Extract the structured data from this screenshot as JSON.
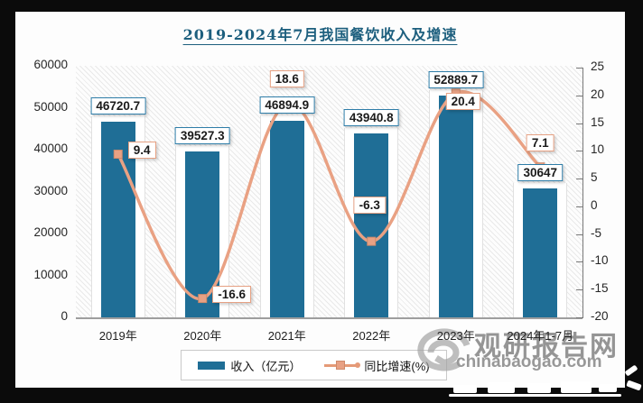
{
  "chart_data": {
    "type": "combo-bar-line",
    "title": "2019-2024年7月我国餐饮收入及增速",
    "categories": [
      "2019年",
      "2020年",
      "2021年",
      "2022年",
      "2023年",
      "2024年1-7月"
    ],
    "series": [
      {
        "name": "收入（亿元）",
        "type": "bar",
        "axis": "left",
        "values": [
          46720.7,
          39527.3,
          46894.9,
          43940.8,
          52889.7,
          30647
        ],
        "labels": [
          "46720.7",
          "39527.3",
          "46894.9",
          "43940.8",
          "52889.7",
          "30647"
        ]
      },
      {
        "name": "同比增速(%)",
        "type": "line",
        "axis": "right",
        "values": [
          9.4,
          -16.6,
          18.6,
          -6.3,
          20.4,
          7.1
        ],
        "labels": [
          "9.4",
          "-16.6",
          "18.6",
          "-6.3",
          "20.4",
          "7.1"
        ],
        "label_placement": [
          "right",
          "right",
          "above",
          "above-far",
          "below",
          "above"
        ]
      }
    ],
    "left_axis": {
      "min": 0,
      "max": 60000,
      "step": 10000,
      "ticks": [
        "60000",
        "50000",
        "40000",
        "30000",
        "20000",
        "10000",
        "0"
      ]
    },
    "right_axis": {
      "min": -20,
      "max": 25,
      "step": 5,
      "ticks": [
        "25",
        "20",
        "15",
        "10",
        "5",
        "0",
        "-5",
        "-10",
        "-15",
        "-20"
      ]
    },
    "legend_position": "bottom",
    "grid": "none",
    "plot_background": "diagonal-hatch"
  },
  "colors": {
    "bar": "#1f6e96",
    "line": "#e9a183",
    "marker": "#e8a184",
    "bar_label_border": "#2e7da8",
    "line_label_border": "#e6a183",
    "title": "#1d5f7e",
    "frame": "#0b0b0b",
    "watermark": "#8d8d8d"
  },
  "watermark": {
    "brand": "观研报告网",
    "domain": "chinabaogao.com",
    "logo": "swirl-logo"
  }
}
